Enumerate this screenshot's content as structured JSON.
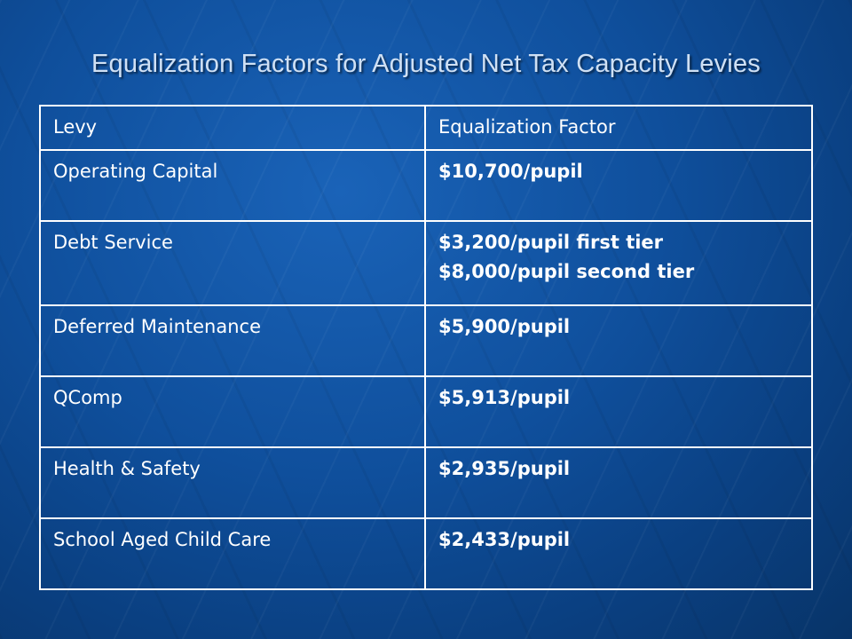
{
  "slide": {
    "title": "Equalization Factors for Adjusted Net Tax Capacity Levies"
  },
  "table": {
    "headers": [
      "Levy",
      "Equalization Factor"
    ],
    "rows": [
      {
        "levy": "Operating Capital",
        "factor": [
          "$10,700/pupil"
        ]
      },
      {
        "levy": "Debt Service",
        "factor": [
          "$3,200/pupil first tier",
          "$8,000/pupil second tier"
        ]
      },
      {
        "levy": "Deferred Maintenance",
        "factor": [
          "$5,900/pupil"
        ]
      },
      {
        "levy": "QComp",
        "factor": [
          "$5,913/pupil"
        ]
      },
      {
        "levy": "Health & Safety",
        "factor": [
          "$2,935/pupil"
        ]
      },
      {
        "levy": "School Aged Child Care",
        "factor": [
          "$2,433/pupil"
        ]
      }
    ]
  },
  "colors": {
    "background": "#0f4f9c",
    "title_text": "#cfe0f4",
    "table_border": "#ffffff",
    "table_text": "#ffffff"
  }
}
